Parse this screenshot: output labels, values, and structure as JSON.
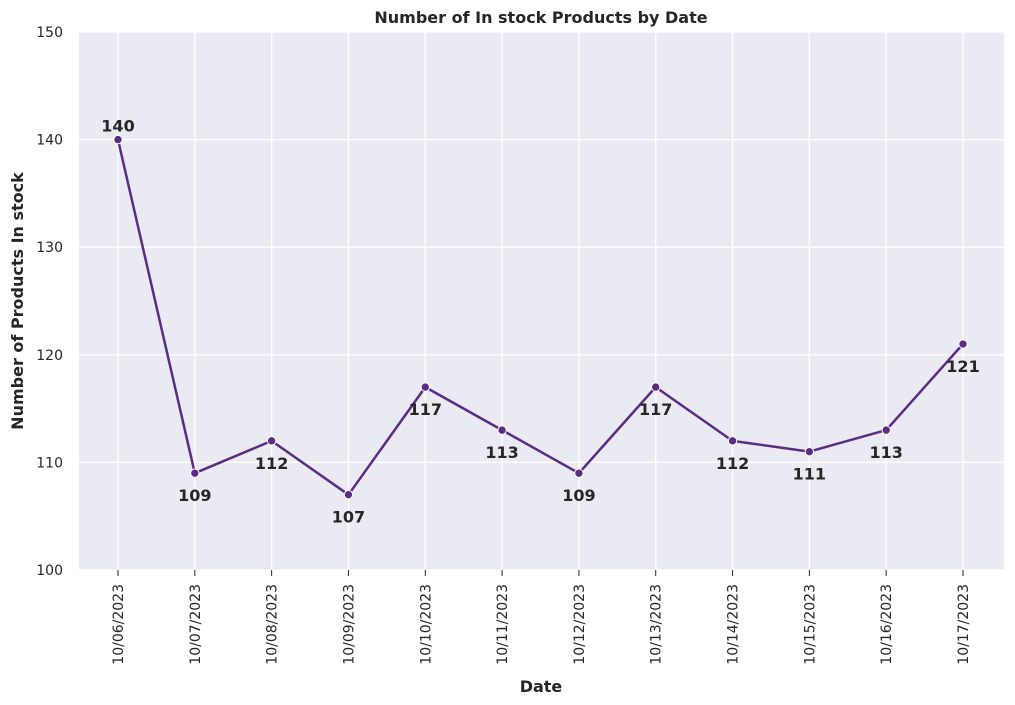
{
  "chart_data": {
    "type": "line",
    "title": "Number of In stock Products by Date",
    "xlabel": "Date",
    "ylabel": "Number of Products In stock",
    "categories": [
      "10/06/2023",
      "10/07/2023",
      "10/08/2023",
      "10/09/2023",
      "10/10/2023",
      "10/11/2023",
      "10/12/2023",
      "10/13/2023",
      "10/14/2023",
      "10/15/2023",
      "10/16/2023",
      "10/17/2023"
    ],
    "values": [
      140,
      109,
      112,
      107,
      117,
      113,
      109,
      117,
      112,
      111,
      113,
      121
    ],
    "ylim": [
      100,
      150
    ],
    "yticks": [
      100,
      110,
      120,
      130,
      140,
      150
    ],
    "grid": true,
    "colors": {
      "line": "#5B2C83",
      "background": "#EAEAF2",
      "grid": "#FFFFFF"
    }
  }
}
